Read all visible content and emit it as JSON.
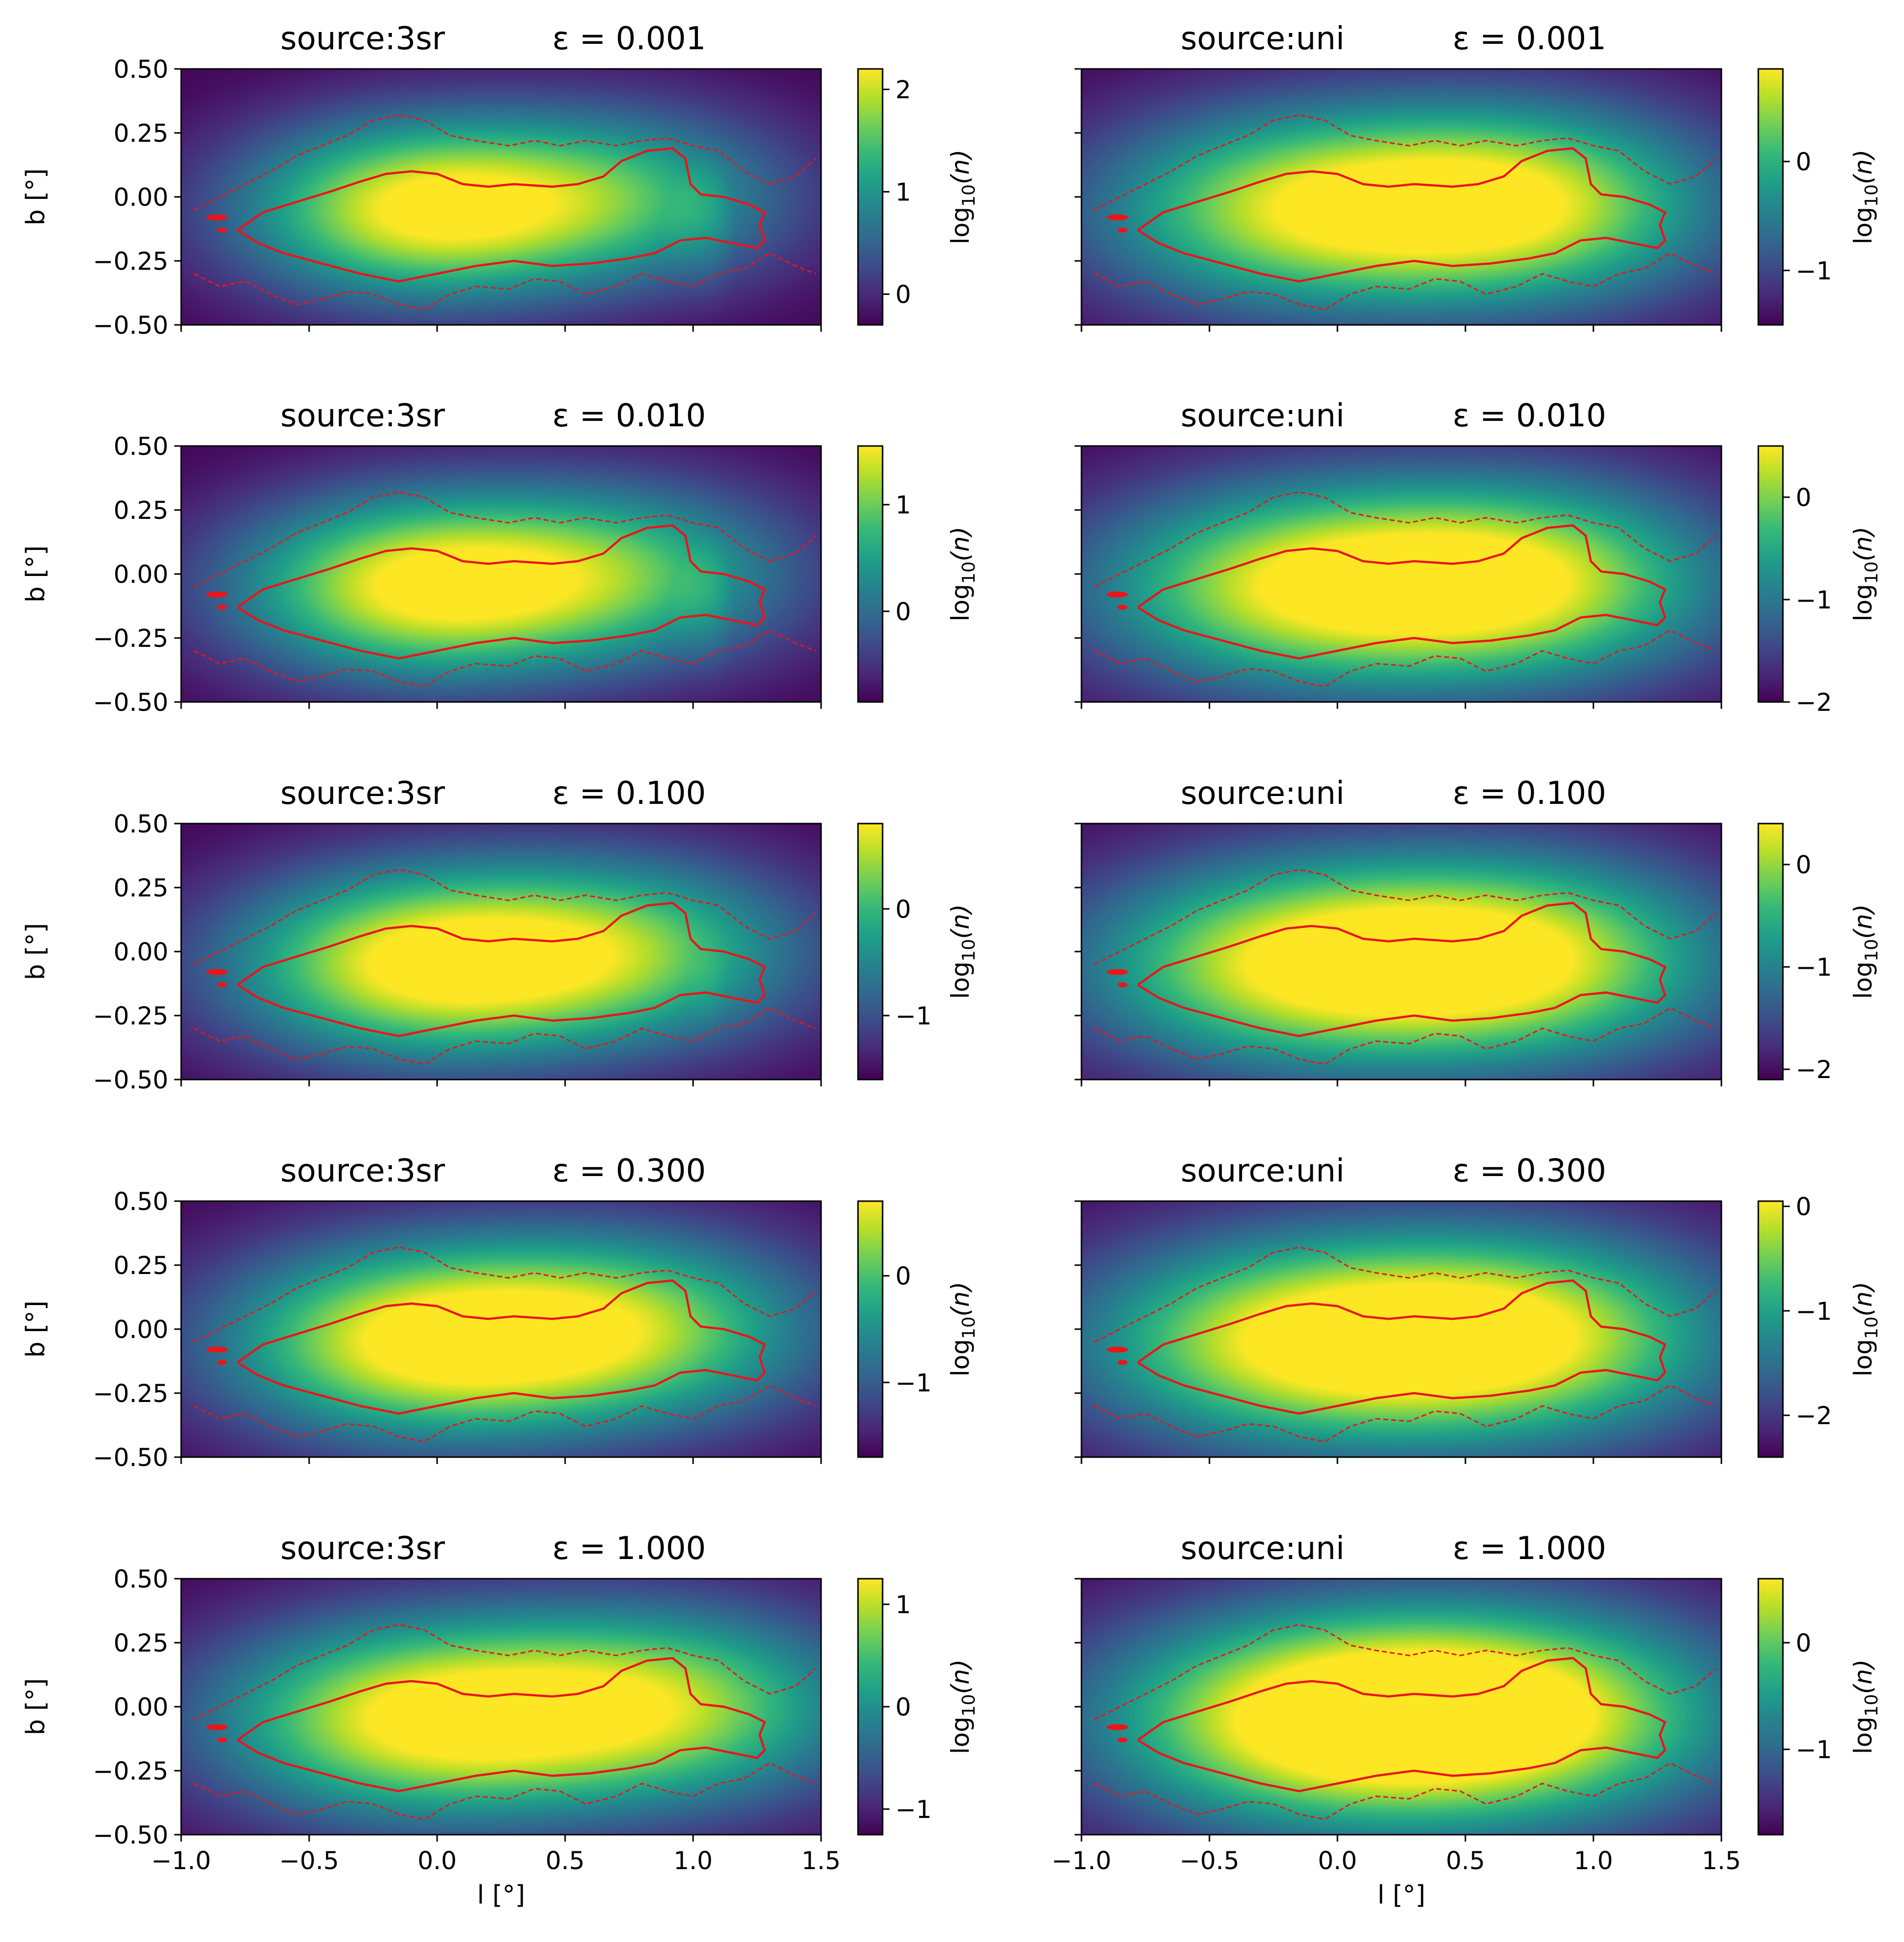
{
  "colors": {
    "cmap_stops": [
      "#440154",
      "#482878",
      "#3e4a89",
      "#31688e",
      "#26828e",
      "#1f9e89",
      "#35b779",
      "#6ece58",
      "#b5de2b",
      "#fde725"
    ],
    "contour": "#e8161a",
    "background": "#440154"
  },
  "chart_data": {
    "type": "heatmap",
    "description_layout": "5 rows x 2 columns of image panels with colorbars",
    "xlabel": "l [°]",
    "ylabel": "b [°]",
    "xlim": [
      -1.0,
      1.5
    ],
    "ylim": [
      -0.5,
      0.5
    ],
    "xticks": [
      "−1.0",
      "−0.5",
      "0.0",
      "0.5",
      "1.0",
      "1.5"
    ],
    "yticks": [
      "0.50",
      "0.25",
      "0.00",
      "−0.25",
      "−0.50"
    ],
    "colorbar_label": "log10(n)",
    "panels": [
      {
        "source": "source:3sr",
        "eps": "ε = 0.001",
        "cb_ticks": [
          "2",
          "1",
          "0"
        ],
        "cb_range": [
          -0.3,
          2.2
        ],
        "cb_tick_values": [
          2,
          1,
          0
        ],
        "blobs": [
          {
            "l": -0.05,
            "b": -0.05,
            "w": 1.0
          },
          {
            "l": 0.68,
            "b": 0.0,
            "w": 0.55
          }
        ],
        "spread": 0.55
      },
      {
        "source": "source:uni",
        "eps": "ε = 0.001",
        "cb_ticks": [
          "0",
          "−1"
        ],
        "cb_range": [
          -1.5,
          0.85
        ],
        "cb_tick_values": [
          0,
          -1
        ],
        "blobs": [
          {
            "l": -0.15,
            "b": -0.05,
            "w": 0.8
          },
          {
            "l": 0.65,
            "b": -0.03,
            "w": 1.0
          }
        ],
        "spread": 0.85
      },
      {
        "source": "source:3sr",
        "eps": "ε = 0.010",
        "cb_ticks": [
          "1",
          "0"
        ],
        "cb_range": [
          -0.85,
          1.55
        ],
        "cb_tick_values": [
          1,
          0
        ],
        "blobs": [
          {
            "l": -0.05,
            "b": -0.05,
            "w": 1.0
          },
          {
            "l": 0.68,
            "b": 0.0,
            "w": 0.6
          }
        ],
        "spread": 0.62
      },
      {
        "source": "source:uni",
        "eps": "ε = 0.010",
        "cb_ticks": [
          "0",
          "−1",
          "−2"
        ],
        "cb_range": [
          -2.0,
          0.5
        ],
        "cb_tick_values": [
          0,
          -1,
          -2
        ],
        "blobs": [
          {
            "l": -0.15,
            "b": -0.05,
            "w": 0.85
          },
          {
            "l": 0.65,
            "b": -0.03,
            "w": 1.0
          }
        ],
        "spread": 0.9
      },
      {
        "source": "source:3sr",
        "eps": "ε = 0.100",
        "cb_ticks": [
          "0",
          "−1"
        ],
        "cb_range": [
          -1.6,
          0.8
        ],
        "cb_tick_values": [
          0,
          -1
        ],
        "blobs": [
          {
            "l": -0.05,
            "b": -0.05,
            "w": 1.0
          },
          {
            "l": 0.68,
            "b": 0.0,
            "w": 0.7
          }
        ],
        "spread": 0.7
      },
      {
        "source": "source:uni",
        "eps": "ε = 0.100",
        "cb_ticks": [
          "0",
          "−1",
          "−2"
        ],
        "cb_range": [
          -2.1,
          0.4
        ],
        "cb_tick_values": [
          0,
          -1,
          -2
        ],
        "blobs": [
          {
            "l": -0.15,
            "b": -0.05,
            "w": 0.9
          },
          {
            "l": 0.65,
            "b": -0.03,
            "w": 1.0
          }
        ],
        "spread": 0.95
      },
      {
        "source": "source:3sr",
        "eps": "ε = 0.300",
        "cb_ticks": [
          "0",
          "−1"
        ],
        "cb_range": [
          -1.7,
          0.7
        ],
        "cb_tick_values": [
          0,
          -1
        ],
        "blobs": [
          {
            "l": -0.05,
            "b": -0.05,
            "w": 1.0
          },
          {
            "l": 0.7,
            "b": 0.0,
            "w": 0.78
          }
        ],
        "spread": 0.78
      },
      {
        "source": "source:uni",
        "eps": "ε = 0.300",
        "cb_ticks": [
          "0",
          "−1",
          "−2"
        ],
        "cb_range": [
          -2.4,
          0.05
        ],
        "cb_tick_values": [
          0,
          -1,
          -2
        ],
        "blobs": [
          {
            "l": -0.15,
            "b": -0.05,
            "w": 0.9
          },
          {
            "l": 0.65,
            "b": -0.03,
            "w": 1.0
          }
        ],
        "spread": 1.0
      },
      {
        "source": "source:3sr",
        "eps": "ε = 1.000",
        "cb_ticks": [
          "1",
          "0",
          "−1"
        ],
        "cb_range": [
          -1.25,
          1.25
        ],
        "cb_tick_values": [
          1,
          0,
          -1
        ],
        "blobs": [
          {
            "l": -0.05,
            "b": -0.05,
            "w": 1.0
          },
          {
            "l": 0.82,
            "b": 0.0,
            "w": 0.85
          }
        ],
        "spread": 0.85
      },
      {
        "source": "source:uni",
        "eps": "ε = 1.000",
        "cb_ticks": [
          "0",
          "−1"
        ],
        "cb_range": [
          -1.8,
          0.6
        ],
        "cb_tick_values": [
          0,
          -1
        ],
        "blobs": [
          {
            "l": -0.05,
            "b": -0.05,
            "w": 1.0
          },
          {
            "l": 0.65,
            "b": -0.03,
            "w": 1.0
          }
        ],
        "spread": 1.1
      }
    ],
    "contour_solid_upper": [
      [
        -0.78,
        -0.13
      ],
      [
        -0.68,
        -0.06
      ],
      [
        -0.55,
        -0.02
      ],
      [
        -0.42,
        0.02
      ],
      [
        -0.3,
        0.06
      ],
      [
        -0.2,
        0.09
      ],
      [
        -0.1,
        0.1
      ],
      [
        0.0,
        0.09
      ],
      [
        0.1,
        0.05
      ],
      [
        0.2,
        0.04
      ],
      [
        0.3,
        0.05
      ],
      [
        0.45,
        0.04
      ],
      [
        0.55,
        0.05
      ],
      [
        0.65,
        0.08
      ],
      [
        0.72,
        0.14
      ],
      [
        0.82,
        0.18
      ],
      [
        0.92,
        0.19
      ],
      [
        0.97,
        0.15
      ],
      [
        0.99,
        0.05
      ],
      [
        1.03,
        0.01
      ],
      [
        1.12,
        0.0
      ],
      [
        1.22,
        -0.03
      ],
      [
        1.28,
        -0.06
      ],
      [
        1.26,
        -0.11
      ],
      [
        1.28,
        -0.17
      ],
      [
        1.25,
        -0.2
      ],
      [
        1.15,
        -0.18
      ],
      [
        1.05,
        -0.16
      ],
      [
        0.95,
        -0.17
      ],
      [
        0.85,
        -0.22
      ],
      [
        0.75,
        -0.24
      ],
      [
        0.6,
        -0.26
      ],
      [
        0.45,
        -0.27
      ],
      [
        0.3,
        -0.25
      ],
      [
        0.15,
        -0.27
      ],
      [
        0.0,
        -0.3
      ],
      [
        -0.15,
        -0.33
      ],
      [
        -0.3,
        -0.3
      ],
      [
        -0.45,
        -0.26
      ],
      [
        -0.6,
        -0.22
      ],
      [
        -0.7,
        -0.18
      ],
      [
        -0.78,
        -0.13
      ]
    ],
    "contour_dashed_upper": [
      [
        -0.95,
        -0.05
      ],
      [
        -0.85,
        0.0
      ],
      [
        -0.75,
        0.05
      ],
      [
        -0.65,
        0.1
      ],
      [
        -0.55,
        0.16
      ],
      [
        -0.45,
        0.2
      ],
      [
        -0.35,
        0.24
      ],
      [
        -0.25,
        0.3
      ],
      [
        -0.15,
        0.32
      ],
      [
        -0.05,
        0.3
      ],
      [
        0.05,
        0.24
      ],
      [
        0.15,
        0.22
      ],
      [
        0.28,
        0.2
      ],
      [
        0.38,
        0.22
      ],
      [
        0.48,
        0.2
      ],
      [
        0.58,
        0.22
      ],
      [
        0.7,
        0.2
      ],
      [
        0.8,
        0.22
      ],
      [
        0.9,
        0.23
      ],
      [
        1.0,
        0.2
      ],
      [
        1.1,
        0.18
      ],
      [
        1.2,
        0.1
      ],
      [
        1.3,
        0.05
      ],
      [
        1.4,
        0.08
      ],
      [
        1.48,
        0.15
      ]
    ],
    "contour_dashed_lower": [
      [
        -0.95,
        -0.3
      ],
      [
        -0.85,
        -0.35
      ],
      [
        -0.75,
        -0.33
      ],
      [
        -0.65,
        -0.38
      ],
      [
        -0.55,
        -0.42
      ],
      [
        -0.45,
        -0.4
      ],
      [
        -0.35,
        -0.37
      ],
      [
        -0.25,
        -0.38
      ],
      [
        -0.15,
        -0.42
      ],
      [
        -0.05,
        -0.44
      ],
      [
        0.05,
        -0.38
      ],
      [
        0.15,
        -0.35
      ],
      [
        0.28,
        -0.36
      ],
      [
        0.38,
        -0.32
      ],
      [
        0.48,
        -0.33
      ],
      [
        0.58,
        -0.38
      ],
      [
        0.7,
        -0.35
      ],
      [
        0.8,
        -0.3
      ],
      [
        0.9,
        -0.33
      ],
      [
        1.0,
        -0.35
      ],
      [
        1.1,
        -0.3
      ],
      [
        1.2,
        -0.28
      ],
      [
        1.3,
        -0.22
      ],
      [
        1.4,
        -0.27
      ],
      [
        1.48,
        -0.3
      ]
    ]
  }
}
